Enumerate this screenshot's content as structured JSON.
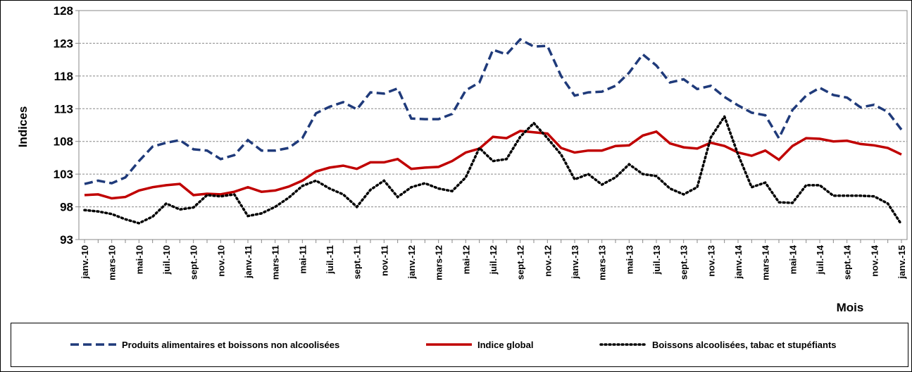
{
  "chart_data": {
    "type": "line",
    "y_label": "Indices",
    "x_label": "Mois",
    "categories": [
      "janv.-10",
      null,
      "mars-10",
      null,
      "mai-10",
      null,
      "juil.-10",
      null,
      "sept.-10",
      null,
      "nov.-10",
      null,
      "janv.-11",
      null,
      "mars-11",
      null,
      "mai-11",
      null,
      "juil.-11",
      null,
      "sept.-11",
      null,
      "nov.-11",
      null,
      "janv.-12",
      null,
      "mars-12",
      null,
      "mai-12",
      null,
      "juil.-12",
      null,
      "sept.-12",
      null,
      "nov.-12",
      null,
      "janv.-13",
      null,
      "mars-13",
      null,
      "mai-13",
      null,
      "juil.-13",
      null,
      "sept.-13",
      null,
      "nov.-13",
      null,
      "janv.-14",
      null,
      "mars-14",
      null,
      "mai-14",
      null,
      "juil.-14",
      null,
      "sept.-14",
      null,
      "nov.-14",
      null,
      "janv.-15"
    ],
    "series": [
      {
        "name": "Produits alimentaires et boissons non alcoolisées",
        "color": "#1f3a7a",
        "dash": "dashed",
        "values": [
          101.5,
          102,
          101.6,
          102.5,
          105,
          107.2,
          107.8,
          108.2,
          106.8,
          106.6,
          105.3,
          105.9,
          108.2,
          106.6,
          106.6,
          107,
          108.5,
          112.3,
          113.3,
          114,
          112.9,
          115.5,
          115.3,
          116.1,
          111.5,
          111.4,
          111.4,
          112.2,
          115.8,
          117,
          122,
          121.3,
          123.6,
          122.5,
          122.6,
          118,
          115,
          115.5,
          115.6,
          116.5,
          118.5,
          121.3,
          119.6,
          117,
          117.5,
          116,
          116.5,
          114.8,
          113.5,
          112.4,
          112,
          108.5,
          112.8,
          115,
          116.2,
          115.1,
          114.7,
          113.2,
          113.6,
          112.5,
          109.8
        ]
      },
      {
        "name": "Indice global",
        "color": "#c00000",
        "dash": "solid",
        "values": [
          99.8,
          99.9,
          99.3,
          99.5,
          100.5,
          101,
          101.3,
          101.5,
          99.8,
          100,
          99.9,
          100.3,
          101,
          100.3,
          100.5,
          101.1,
          102,
          103.4,
          104,
          104.3,
          103.8,
          104.8,
          104.8,
          105.3,
          103.8,
          104,
          104.1,
          105,
          106.3,
          106.9,
          108.7,
          108.5,
          109.6,
          109.4,
          109.2,
          107,
          106.3,
          106.6,
          106.6,
          107.3,
          107.4,
          108.9,
          109.5,
          107.7,
          107.1,
          106.9,
          107.8,
          107.3,
          106.3,
          105.8,
          106.6,
          105.2,
          107.3,
          108.5,
          108.4,
          108,
          108.1,
          107.6,
          107.4,
          107,
          106
        ]
      },
      {
        "name": "Boissons alcoolisées, tabac et stupéfiants",
        "color": "#000000",
        "dash": "dotted",
        "values": [
          97.5,
          97.3,
          96.9,
          96.1,
          95.5,
          96.5,
          98.5,
          97.6,
          97.9,
          99.8,
          99.6,
          99.9,
          96.6,
          97,
          98,
          99.4,
          101.2,
          102,
          100.8,
          99.9,
          98,
          100.6,
          102,
          99.5,
          101,
          101.6,
          100.8,
          100.4,
          102.5,
          107,
          105,
          105.3,
          108.7,
          110.8,
          108.5,
          106,
          102.2,
          103,
          101.4,
          102.5,
          104.5,
          103,
          102.7,
          100.8,
          99.9,
          101,
          108.6,
          111.8,
          106,
          101,
          101.7,
          98.7,
          98.6,
          101.3,
          101.3,
          99.7,
          99.7,
          99.7,
          99.6,
          98.5,
          95.3
        ]
      }
    ],
    "ylim": [
      93,
      128
    ],
    "yticks": [
      93,
      98,
      103,
      108,
      113,
      118,
      123,
      128
    ],
    "grid": true,
    "legend": "bottom"
  }
}
